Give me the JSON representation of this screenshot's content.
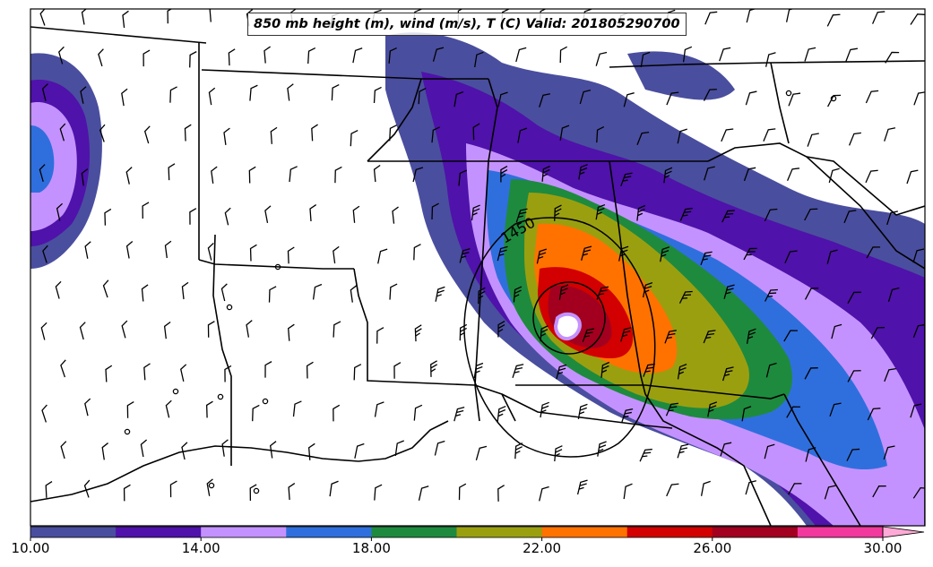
{
  "map": {
    "title": "850 mb height (m), wind (m/s), T (C) Valid: 201805290700",
    "contour_label": "1450",
    "colorbar": {
      "min": 10,
      "max": 30,
      "step": 2,
      "extend": "max",
      "colors": [
        "#4a4e9e",
        "#4f12aa",
        "#c492ff",
        "#2f6fdd",
        "#1e8a3e",
        "#9a9f10",
        "#ff7200",
        "#d20000",
        "#a2001e",
        "#f2399e",
        "#ffaad6"
      ],
      "tick_labels": [
        "10.00",
        "14.00",
        "18.00",
        "22.00",
        "26.00",
        "30.00"
      ]
    }
  }
}
